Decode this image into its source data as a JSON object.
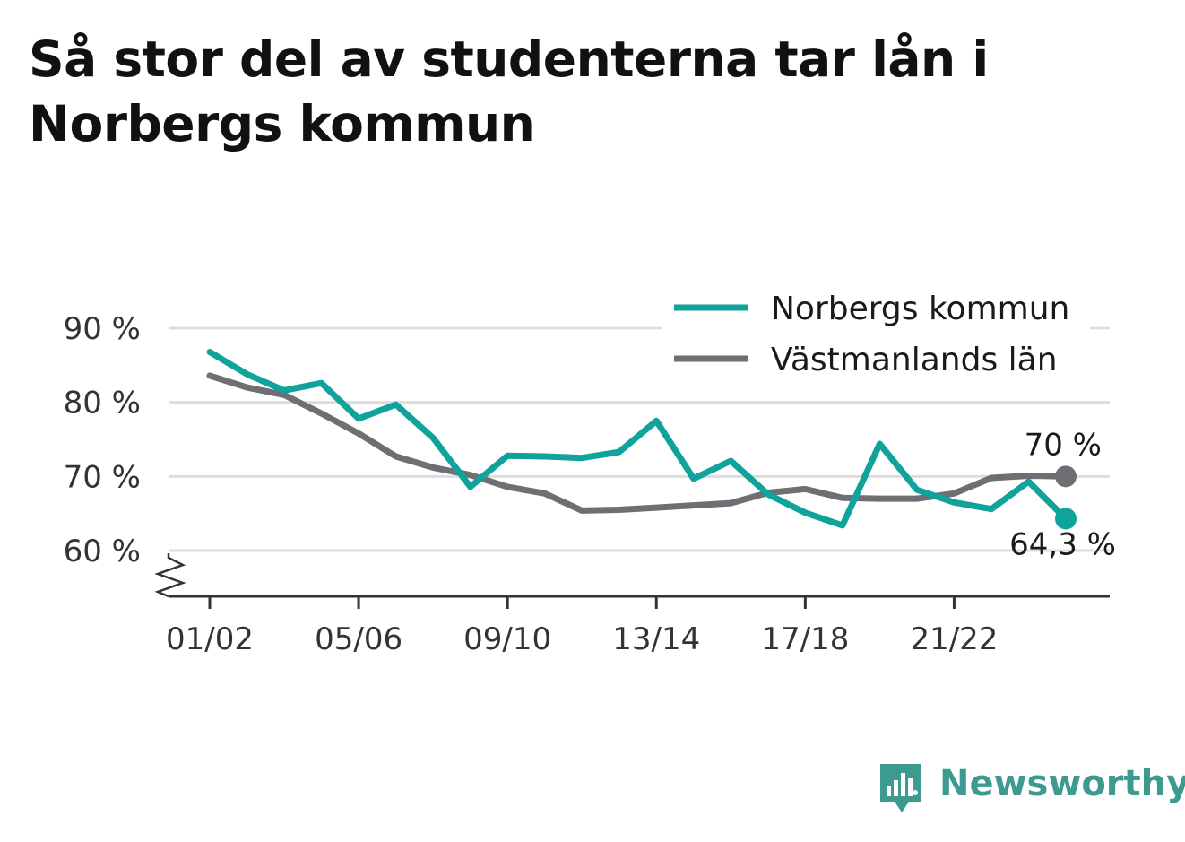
{
  "title": "Så stor del av studenterna tar lån i Norbergs kommun",
  "brand": {
    "name": "Newsworthy",
    "icon": "bar-chart-bubble-icon",
    "color": "#3d9a91"
  },
  "chart_data": {
    "type": "line",
    "title": "Så stor del av studenterna tar lån i Norbergs kommun",
    "x": [
      "01/02",
      "02/03",
      "03/04",
      "04/05",
      "05/06",
      "06/07",
      "07/08",
      "08/09",
      "09/10",
      "10/11",
      "11/12",
      "12/13",
      "13/14",
      "14/15",
      "15/16",
      "16/17",
      "17/18",
      "18/19",
      "19/20",
      "20/21",
      "21/22",
      "22/23",
      "23/24",
      "24/25"
    ],
    "x_tick_labels": [
      "01/02",
      "05/06",
      "09/10",
      "13/14",
      "17/18",
      "21/22"
    ],
    "y_tick_labels": [
      "60 %",
      "70 %",
      "80 %",
      "90 %"
    ],
    "ylim": [
      54,
      92
    ],
    "y_broken_axis": true,
    "grid": true,
    "legend_position": "top-right",
    "series": [
      {
        "name": "Norbergs kommun",
        "color": "#0fa39b",
        "values": [
          86.8,
          83.8,
          81.6,
          82.6,
          77.8,
          79.7,
          75.2,
          68.6,
          72.8,
          72.7,
          72.5,
          73.3,
          77.5,
          69.7,
          72.1,
          67.6,
          65.1,
          63.4,
          74.4,
          68.2,
          66.5,
          65.6,
          69.3,
          64.3
        ],
        "end_label": "64,3 %"
      },
      {
        "name": "Västmanlands län",
        "color": "#6f6e74",
        "values": [
          83.6,
          82.0,
          81.0,
          78.5,
          75.8,
          72.7,
          71.2,
          70.2,
          68.6,
          67.7,
          65.4,
          65.5,
          65.8,
          66.1,
          66.4,
          67.8,
          68.3,
          67.1,
          67.0,
          67.0,
          67.7,
          69.8,
          70.1,
          70.0
        ],
        "end_label": "70 %"
      }
    ]
  }
}
